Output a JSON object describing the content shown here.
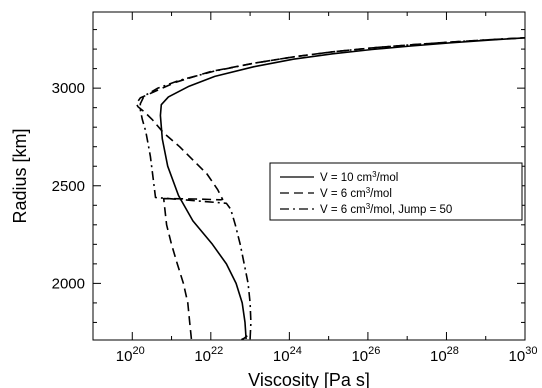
{
  "chart_data": {
    "type": "line",
    "xlabel": "Viscosity [Pa s]",
    "ylabel": "Radius [km]",
    "x_scale": "log",
    "xlim": [
      1e+19,
      1e+30
    ],
    "ylim": [
      1710,
      3390
    ],
    "x_ticks": [
      {
        "value": 1e+20,
        "base": "10",
        "exp": "20"
      },
      {
        "value": 1e+22,
        "base": "10",
        "exp": "22"
      },
      {
        "value": 1e+24,
        "base": "10",
        "exp": "24"
      },
      {
        "value": 1e+26,
        "base": "10",
        "exp": "26"
      },
      {
        "value": 1e+28,
        "base": "10",
        "exp": "28"
      },
      {
        "value": 1e+30,
        "base": "10",
        "exp": "30"
      }
    ],
    "y_ticks": [
      {
        "value": 2000,
        "label": "2000"
      },
      {
        "value": 2500,
        "label": "2500"
      },
      {
        "value": 3000,
        "label": "3000"
      }
    ],
    "grid": false,
    "legend_position": "center-right",
    "series": [
      {
        "name": "V = 10 cm3/mol",
        "legend_parts": [
          "V = 10 cm",
          "3",
          "/mol"
        ],
        "dash": "solid",
        "x": [
          7.9e+22,
          7.4e+22,
          6.3e+22,
          4.4e+22,
          2.5e+22,
          1.1e+22,
          3.5e+21,
          1.5e+21,
          8e+20,
          5.8e+20,
          5.2e+20,
          5.5e+20,
          8.3e+20,
          2.8e+21,
          1.26e+22,
          1.26e+23,
          1.26e+24,
          1.26e+25,
          1.26e+26,
          1.26e+27,
          1.26e+28,
          1.26e+29,
          1e+30
        ],
        "y": [
          1715,
          1800,
          1900,
          2000,
          2100,
          2200,
          2320,
          2450,
          2600,
          2740,
          2860,
          2915,
          2955,
          3010,
          3060,
          3110,
          3148,
          3176,
          3198,
          3216,
          3232,
          3246,
          3258
        ]
      },
      {
        "name": "V = 6 cm3/mol",
        "legend_parts": [
          "V =   6 cm",
          "3",
          "/mol"
        ],
        "dash": "dashed",
        "x": [
          3.2e+21,
          2.9e+21,
          2.6e+21,
          2e+21,
          1.4e+21,
          1e+21,
          7.5e+20,
          6.3e+20,
          4e+21,
          1.8e+22,
          2e+22,
          1.5e+22,
          8e+21,
          4e+21,
          1.6e+21,
          6.3e+20,
          3.2e+20,
          2e+20,
          1.4e+20,
          1.26e+20,
          1.6e+20,
          3.5e+20,
          1.26e+21,
          1e+22,
          1.26e+23,
          1.26e+24,
          1.26e+25,
          1.26e+26,
          1.26e+27,
          1.26e+28,
          1.26e+29,
          1e+30
        ],
        "y": [
          1715,
          1800,
          1900,
          2000,
          2100,
          2200,
          2300,
          2434,
          2432,
          2428,
          2430,
          2480,
          2560,
          2620,
          2700,
          2770,
          2840,
          2880,
          2905,
          2920,
          2950,
          2980,
          3030,
          3085,
          3128,
          3160,
          3186,
          3206,
          3222,
          3236,
          3248,
          3258
        ]
      },
      {
        "name": "V = 6 cm3/mol, Jump = 50",
        "legend_parts": [
          "V =   6 cm",
          "3",
          "/mol, Jump = 50"
        ],
        "dash": "dashdot",
        "x": [
          1e+23,
          1.05e+23,
          1e+23,
          8.9e+22,
          7.1e+22,
          5.6e+22,
          4.2e+22,
          3.2e+22,
          2.5e+22,
          3.9e+20,
          3.3e+20,
          2.9e+20,
          2.5e+20,
          2.2e+20,
          1.8e+20,
          1.6e+20,
          1.6e+20,
          2e+20,
          4.5e+20,
          1.6e+21,
          1.26e+22,
          1.26e+23,
          1.26e+24,
          1.26e+25,
          1.26e+26,
          1.26e+27,
          1.26e+28,
          1.26e+29,
          1e+30
        ],
        "y": [
          1715,
          1800,
          1900,
          2000,
          2100,
          2200,
          2300,
          2380,
          2410,
          2440,
          2560,
          2650,
          2720,
          2780,
          2840,
          2890,
          2920,
          2960,
          3000,
          3040,
          3088,
          3128,
          3160,
          3186,
          3206,
          3222,
          3236,
          3248,
          3258
        ]
      }
    ]
  },
  "extra_curves": [
    {
      "dash": "solid",
      "x": [
        6e+22,
        7e+22,
        8.5e+22
      ],
      "y": [
        1712,
        1718,
        1732
      ]
    }
  ]
}
